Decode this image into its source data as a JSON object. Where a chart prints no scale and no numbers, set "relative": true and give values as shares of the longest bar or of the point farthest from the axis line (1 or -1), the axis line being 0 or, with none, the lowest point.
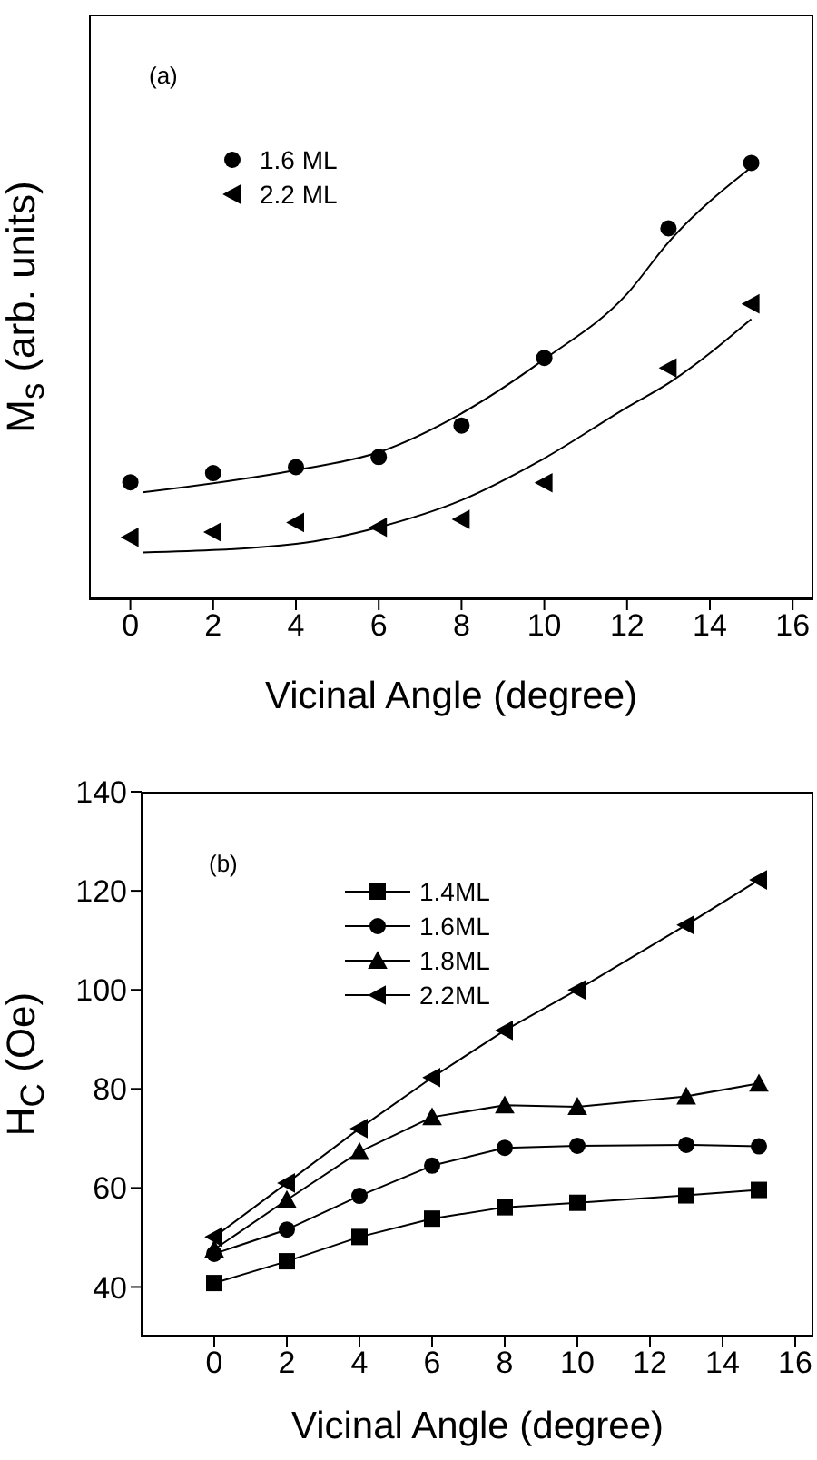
{
  "chart_data": [
    {
      "type": "scatter",
      "relative": true,
      "xlabel": "Vicinal Angle (degree)",
      "ylabel": "M$_{s}$ (arb. units)",
      "annotations": [
        "(a)"
      ],
      "xlim": [
        -1,
        16.5
      ],
      "xticks": [
        0,
        2,
        4,
        6,
        8,
        10,
        12,
        14,
        16
      ],
      "tick_labels": "x",
      "legend": "top left",
      "x": [
        0,
        2,
        4,
        6,
        8,
        10,
        13,
        15
      ],
      "series": [
        {
          "name": "1.6 ML",
          "color": "#000000",
          "marker": "circle",
          "values": [
            0.268,
            0.289,
            0.303,
            0.326,
            0.398,
            0.553,
            0.85,
            1
          ]
        },
        {
          "name": "2.2 ML",
          "color": "#000000",
          "marker": "triangle-left",
          "values": [
            0.142,
            0.154,
            0.176,
            0.165,
            0.183,
            0.267,
            0.53,
            0.677
          ]
        },
        {
          "type": "line",
          "color": "#000000",
          "marker": "none",
          "x": [
            0.3,
            4,
            6,
            8,
            10,
            12,
            13,
            15
          ],
          "values": [
            0.245,
            0.296,
            0.337,
            0.426,
            0.55,
            0.7,
            0.818,
            0.99
          ]
        },
        {
          "type": "line",
          "color": "#000000",
          "marker": "none",
          "x": [
            0.3,
            4,
            6,
            8,
            10,
            12,
            13,
            15
          ],
          "values": [
            0.107,
            0.127,
            0.165,
            0.227,
            0.323,
            0.44,
            0.495,
            0.642
          ]
        }
      ]
    },
    {
      "type": "line",
      "xlabel": "Vicinal Angle (degree)",
      "ylabel": "H$_{C}$ (Oe)",
      "annotations": [
        "(b)"
      ],
      "xlim": [
        -2,
        16.5
      ],
      "xticks": [
        0,
        2,
        4,
        6,
        8,
        10,
        12,
        14,
        16
      ],
      "ylim": [
        30,
        140
      ],
      "yticks": [
        40,
        60,
        80,
        100,
        120,
        140
      ],
      "legend": "top",
      "line_style": "solid",
      "x": [
        0,
        2,
        4,
        6,
        8,
        10,
        13,
        15
      ],
      "series": [
        {
          "name": "1.4ML",
          "color": "#000000",
          "marker": "square",
          "values": [
            40.8,
            45.2,
            50.1,
            53.8,
            56.1,
            57.0,
            58.5,
            59.6
          ]
        },
        {
          "name": "1.6ML",
          "color": "#000000",
          "marker": "circle",
          "values": [
            46.7,
            51.6,
            58.4,
            64.5,
            68.1,
            68.5,
            68.7,
            68.4
          ]
        },
        {
          "name": "1.8ML",
          "color": "#000000",
          "marker": "triangle",
          "values": [
            47.6,
            57.6,
            67.3,
            74.3,
            76.7,
            76.4,
            78.5,
            81.1
          ]
        },
        {
          "name": "2.2ML",
          "color": "#000000",
          "marker": "triangle-left",
          "values": [
            50.1,
            61.0,
            72.0,
            82.3,
            91.8,
            100.0,
            113.1,
            122.2
          ]
        }
      ]
    }
  ]
}
